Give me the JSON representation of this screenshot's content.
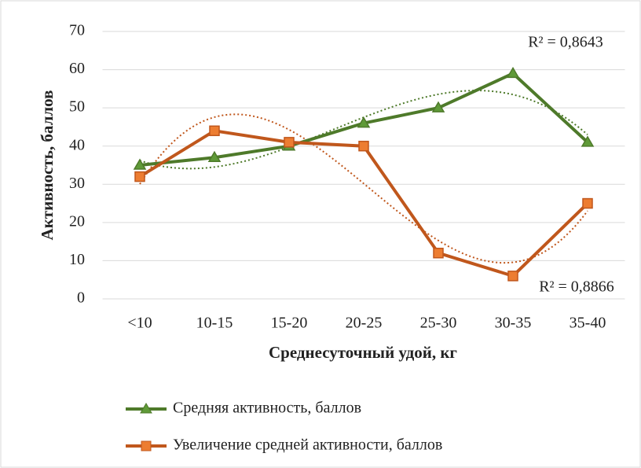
{
  "chart_data": {
    "type": "line",
    "categories": [
      "<10",
      "10-15",
      "15-20",
      "20-25",
      "25-30",
      "30-35",
      "35-40"
    ],
    "series": [
      {
        "name": "Средняя активность, баллов",
        "color": "#4e7a2a",
        "marker": "triangle",
        "values": [
          35,
          37,
          40,
          46,
          50,
          59,
          41
        ]
      },
      {
        "name": "Увеличение средней активности, баллов",
        "color": "#c0571c",
        "marker": "square",
        "values": [
          32,
          44,
          41,
          40,
          12,
          6,
          25
        ]
      }
    ],
    "xlabel": "Среднесуточный удой, кг",
    "ylabel": "Активность, баллов",
    "ylim": [
      0,
      70
    ],
    "yticks": [
      0,
      10,
      20,
      30,
      40,
      50,
      60,
      70
    ],
    "grid": true,
    "annotations": [
      "R² = 0,8643",
      "R² = 0,8866"
    ],
    "trendline": "polynomial",
    "legend": "bottom"
  }
}
